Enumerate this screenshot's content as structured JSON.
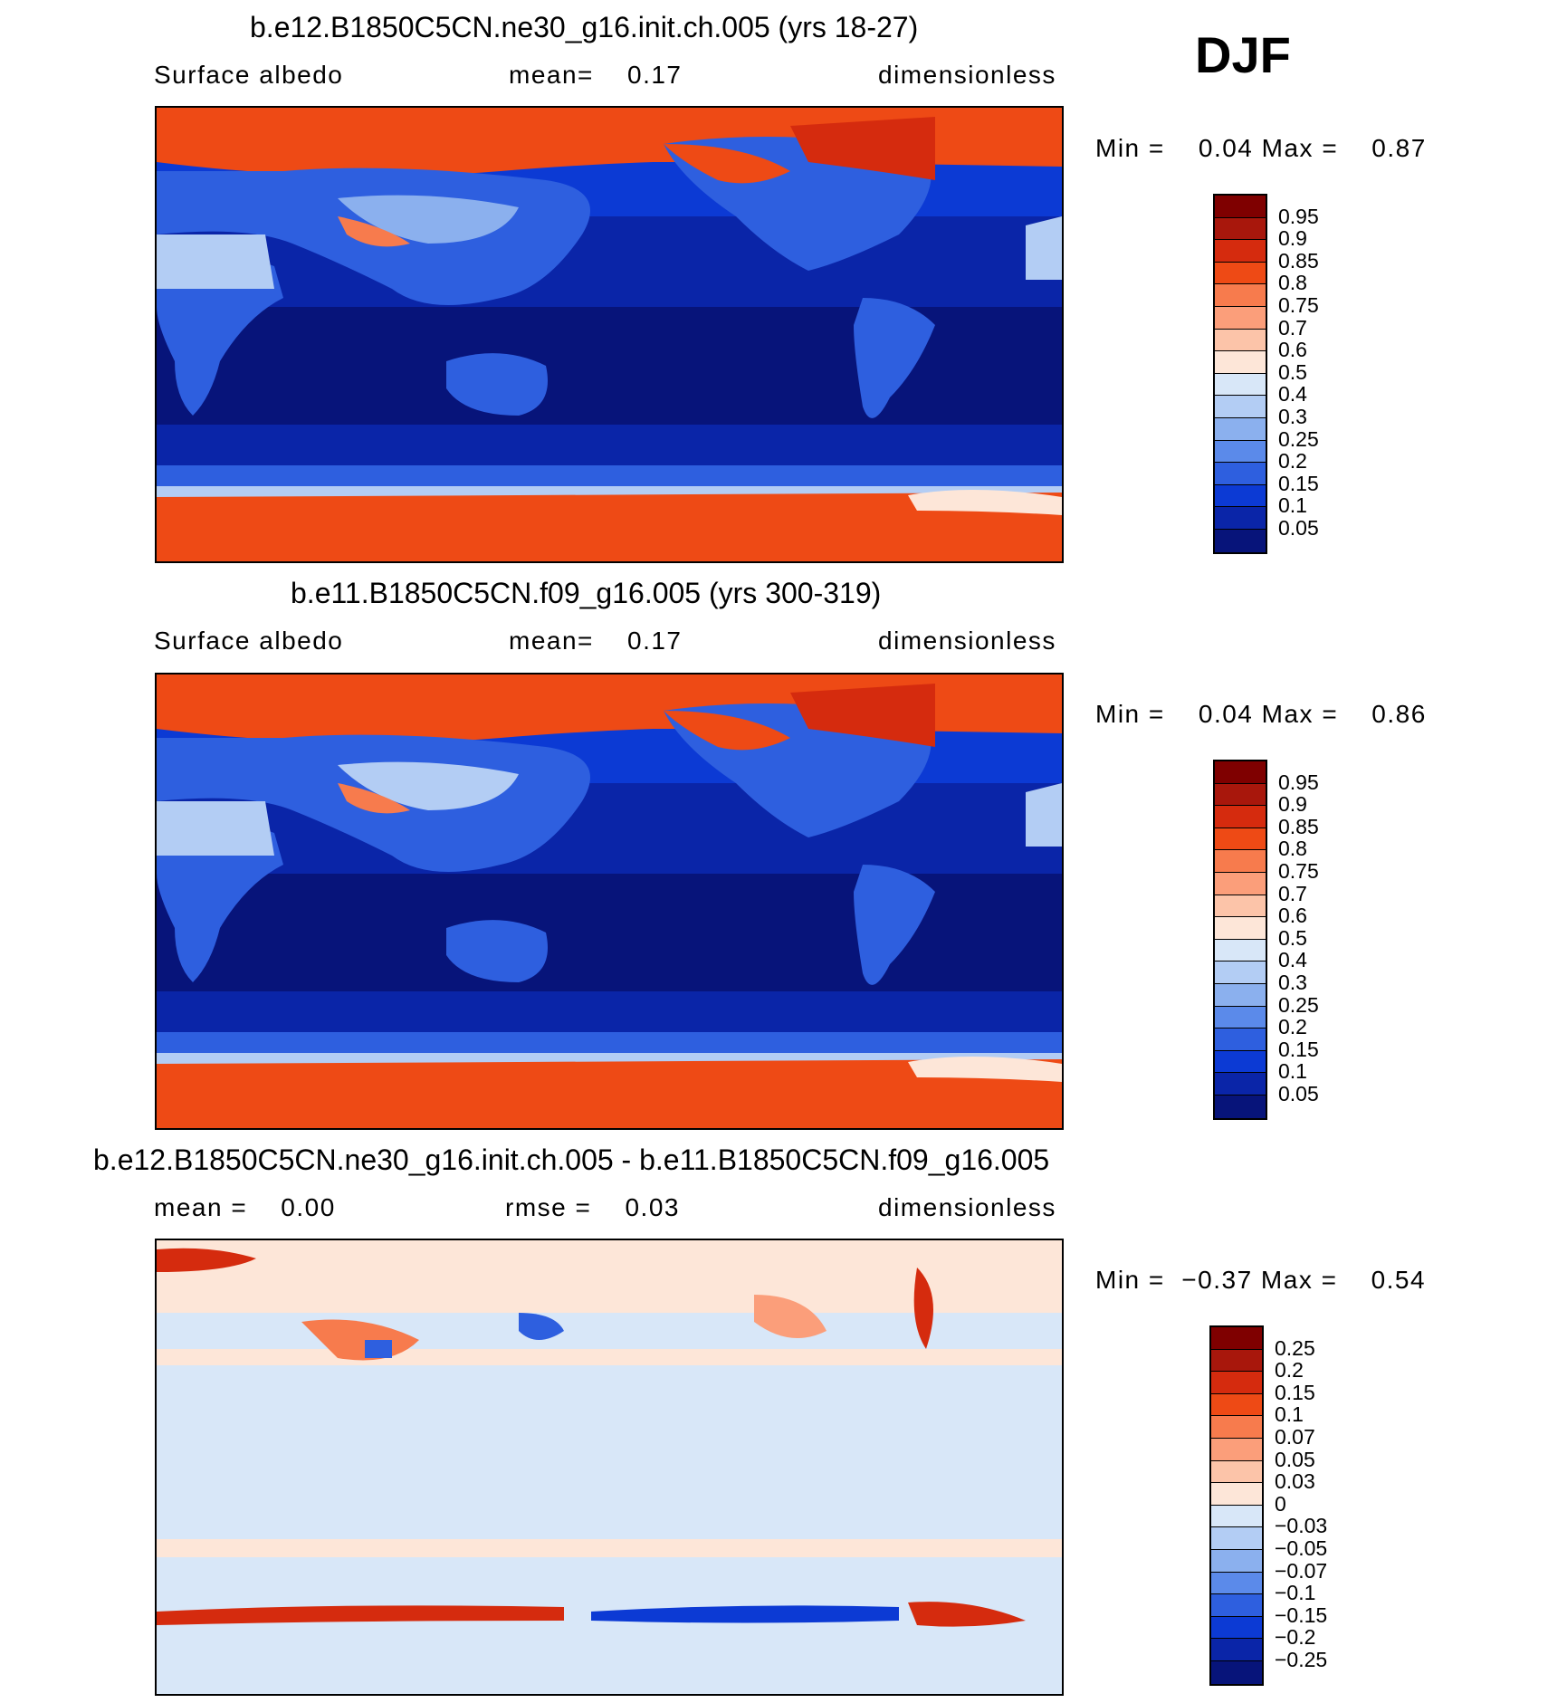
{
  "season": "DJF",
  "panels": [
    {
      "title": "b.e12.B1850C5CN.ne30_g16.init.ch.005 (yrs 18-27)",
      "left_label": "Surface albedo",
      "center_label": "mean=    0.17",
      "right_label": "dimensionless",
      "minmax": "Min =    0.04 Max =    0.87",
      "colorbar_labels": [
        "0.95",
        "0.9",
        "0.85",
        "0.8",
        "0.75",
        "0.7",
        "0.6",
        "0.5",
        "0.4",
        "0.3",
        "0.25",
        "0.2",
        "0.15",
        "0.1",
        "0.05"
      ]
    },
    {
      "title": "b.e11.B1850C5CN.f09_g16.005 (yrs 300-319)",
      "left_label": "Surface albedo",
      "center_label": "mean=    0.17",
      "right_label": "dimensionless",
      "minmax": "Min =    0.04 Max =    0.86",
      "colorbar_labels": [
        "0.95",
        "0.9",
        "0.85",
        "0.8",
        "0.75",
        "0.7",
        "0.6",
        "0.5",
        "0.4",
        "0.3",
        "0.25",
        "0.2",
        "0.15",
        "0.1",
        "0.05"
      ]
    },
    {
      "title": "b.e12.B1850C5CN.ne30_g16.init.ch.005 - b.e11.B1850C5CN.f09_g16.005",
      "left_label": "mean =    0.00",
      "center_label": "rmse =    0.03",
      "right_label": "dimensionless",
      "minmax": "Min =  −0.37 Max =    0.54",
      "colorbar_labels": [
        "0.25",
        "0.2",
        "0.15",
        "0.1",
        "0.07",
        "0.05",
        "0.03",
        "0",
        "−0.03",
        "−0.05",
        "−0.07",
        "−0.1",
        "−0.15",
        "−0.2",
        "−0.25"
      ]
    }
  ],
  "colors": {
    "abs_scale": [
      "#7f0000",
      "#a8170c",
      "#d52b0e",
      "#ee4a15",
      "#f77b4d",
      "#fb9e7a",
      "#fcc4a9",
      "#fde6d8",
      "#d8e7f8",
      "#b3cdf4",
      "#8bb0ee",
      "#5b8aea",
      "#2e5fdf",
      "#0c3ad4",
      "#0a25a8",
      "#07147a"
    ],
    "diff_scale": [
      "#7f0000",
      "#a8170c",
      "#d52b0e",
      "#ee4a15",
      "#f77b4d",
      "#fb9e7a",
      "#fcc4a9",
      "#fde6d8",
      "#d8e7f8",
      "#b3cdf4",
      "#8bb0ee",
      "#5b8aea",
      "#2e5fdf",
      "#0c3ad4",
      "#0a25a8",
      "#07147a"
    ],
    "coastline": "#000000"
  },
  "chart_data": [
    {
      "type": "heatmap",
      "title": "b.e12.B1850C5CN.ne30_g16.init.ch.005 (yrs 18-27)",
      "variable": "Surface albedo",
      "units": "dimensionless",
      "season": "DJF",
      "mean": 0.17,
      "min": 0.04,
      "max": 0.87,
      "contour_levels": [
        0.05,
        0.1,
        0.15,
        0.2,
        0.25,
        0.3,
        0.4,
        0.5,
        0.6,
        0.7,
        0.75,
        0.8,
        0.85,
        0.9,
        0.95
      ]
    },
    {
      "type": "heatmap",
      "title": "b.e11.B1850C5CN.f09_g16.005 (yrs 300-319)",
      "variable": "Surface albedo",
      "units": "dimensionless",
      "season": "DJF",
      "mean": 0.17,
      "min": 0.04,
      "max": 0.86,
      "contour_levels": [
        0.05,
        0.1,
        0.15,
        0.2,
        0.25,
        0.3,
        0.4,
        0.5,
        0.6,
        0.7,
        0.75,
        0.8,
        0.85,
        0.9,
        0.95
      ]
    },
    {
      "type": "heatmap",
      "title": "b.e12.B1850C5CN.ne30_g16.init.ch.005 - b.e11.B1850C5CN.f09_g16.005",
      "units": "dimensionless",
      "season": "DJF",
      "mean": 0.0,
      "rmse": 0.03,
      "min": -0.37,
      "max": 0.54,
      "contour_levels": [
        -0.25,
        -0.2,
        -0.15,
        -0.1,
        -0.07,
        -0.05,
        -0.03,
        0,
        0.03,
        0.05,
        0.07,
        0.1,
        0.15,
        0.2,
        0.25
      ]
    }
  ]
}
